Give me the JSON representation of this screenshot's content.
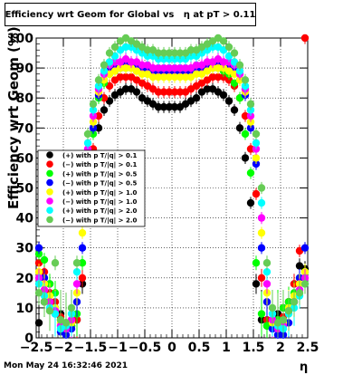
{
  "chart_data": {
    "type": "scatter",
    "title": "Efficiency wrt Geom for Global vs   η at pT > 0.11",
    "xlabel": "η",
    "ylabel": "Efficiency wrt Geom (%)",
    "xlim": [
      -2.5,
      2.5
    ],
    "ylim": [
      0,
      100
    ],
    "x_ticks": [
      "−2.5",
      "−2",
      "−1.5",
      "−1",
      "−0.5",
      "0",
      "0.5",
      "1",
      "1.5",
      "2",
      "2.5"
    ],
    "y_ticks": [
      "0",
      "10",
      "20",
      "30",
      "40",
      "50",
      "60",
      "70",
      "80",
      "90",
      "100"
    ],
    "grid": true,
    "legend_position": "left-middle",
    "footer": "Mon May 24 16:32:46 2021",
    "series": [
      {
        "name": "(+) with p T/|q| > 0.1",
        "color": "#000000",
        "x": [
          -2.45,
          -2.35,
          -2.25,
          -2.15,
          -2.05,
          -1.95,
          -1.85,
          -1.75,
          -1.65,
          -1.55,
          -1.45,
          -1.35,
          -1.25,
          -1.15,
          -1.05,
          -0.95,
          -0.85,
          -0.75,
          -0.65,
          -0.55,
          -0.45,
          -0.35,
          -0.25,
          -0.15,
          -0.05,
          0.05,
          0.15,
          0.25,
          0.35,
          0.45,
          0.55,
          0.65,
          0.75,
          0.85,
          0.95,
          1.05,
          1.15,
          1.25,
          1.35,
          1.45,
          1.55,
          1.65,
          1.75,
          1.85,
          1.95,
          2.05,
          2.15,
          2.25,
          2.35,
          2.45
        ],
        "y": [
          5,
          12,
          18,
          10,
          8,
          5,
          4,
          6,
          18,
          45,
          60,
          70,
          76,
          79,
          81,
          82,
          83,
          83,
          82,
          80,
          79,
          78,
          77,
          77,
          77,
          77,
          77,
          78,
          79,
          80,
          82,
          83,
          83,
          82,
          81,
          79,
          76,
          70,
          60,
          45,
          18,
          6,
          4,
          5,
          8,
          10,
          12,
          18,
          24,
          23
        ]
      },
      {
        "name": "(−) with p T/|q| > 0.1",
        "color": "#ff0000",
        "x": [
          -2.45,
          -2.35,
          -2.25,
          -2.15,
          -2.05,
          -1.95,
          -1.85,
          -1.75,
          -1.65,
          -1.55,
          -1.45,
          -1.35,
          -1.25,
          -1.15,
          -1.05,
          -0.95,
          -0.85,
          -0.75,
          -0.65,
          -0.55,
          -0.45,
          -0.35,
          -0.25,
          -0.15,
          -0.05,
          0.05,
          0.15,
          0.25,
          0.35,
          0.45,
          0.55,
          0.65,
          0.75,
          0.85,
          0.95,
          1.05,
          1.15,
          1.25,
          1.35,
          1.45,
          1.55,
          1.65,
          1.75,
          1.85,
          1.95,
          2.05,
          2.15,
          2.25,
          2.35,
          2.45
        ],
        "y": [
          25,
          22,
          15,
          12,
          7,
          5,
          4,
          6,
          20,
          48,
          63,
          74,
          80,
          84,
          86,
          87,
          87,
          87,
          86,
          85,
          84,
          83,
          82,
          82,
          82,
          82,
          82,
          82,
          83,
          84,
          85,
          86,
          87,
          87,
          87,
          86,
          84,
          80,
          74,
          63,
          48,
          20,
          6,
          4,
          5,
          7,
          12,
          18,
          29,
          100
        ]
      },
      {
        "name": "(+) with p T/|q| > 0.5",
        "color": "#00ff00",
        "x": [
          -2.45,
          -2.35,
          -2.25,
          -2.15,
          -2.05,
          -1.95,
          -1.85,
          -1.75,
          -1.65,
          -1.55,
          -1.45,
          -1.35,
          -1.25,
          -1.15,
          -1.05,
          -0.95,
          -0.85,
          -0.75,
          -0.65,
          -0.55,
          -0.45,
          -0.35,
          -0.25,
          -0.15,
          -0.05,
          0.05,
          0.15,
          0.25,
          0.35,
          0.45,
          0.55,
          0.65,
          0.75,
          0.85,
          0.95,
          1.05,
          1.15,
          1.25,
          1.35,
          1.45,
          1.55,
          1.65,
          1.75,
          1.85,
          1.95,
          2.05,
          2.15,
          2.25,
          2.35,
          2.45
        ],
        "y": [
          28,
          26,
          18,
          15,
          6,
          5,
          4,
          8,
          25,
          55,
          68,
          80,
          85,
          88,
          89,
          90,
          90,
          90,
          89,
          89,
          88,
          88,
          88,
          88,
          88,
          88,
          88,
          88,
          88,
          89,
          89,
          90,
          90,
          90,
          89,
          88,
          85,
          80,
          68,
          55,
          25,
          8,
          4,
          5,
          6,
          10,
          12,
          15,
          20,
          22
        ]
      },
      {
        "name": "(−) with p T/|q| > 0.5",
        "color": "#0000ff",
        "x": [
          -2.45,
          -2.35,
          -2.25,
          -2.15,
          -2.05,
          -1.95,
          -1.85,
          -1.75,
          -1.65,
          -1.55,
          -1.45,
          -1.35,
          -1.25,
          -1.15,
          -1.05,
          -0.95,
          -0.85,
          -0.75,
          -0.65,
          -0.55,
          -0.45,
          -0.35,
          -0.25,
          -0.15,
          -0.05,
          0.05,
          0.15,
          0.25,
          0.35,
          0.45,
          0.55,
          0.65,
          0.75,
          0.85,
          0.95,
          1.05,
          1.15,
          1.25,
          1.35,
          1.45,
          1.55,
          1.65,
          1.75,
          1.85,
          1.95,
          2.05,
          2.15,
          2.25,
          2.35,
          2.45
        ],
        "y": [
          30,
          20,
          12,
          8,
          2,
          1,
          3,
          12,
          30,
          58,
          70,
          81,
          86,
          89,
          90,
          90,
          91,
          91,
          90,
          90,
          89,
          89,
          88,
          88,
          88,
          88,
          88,
          88,
          89,
          89,
          90,
          90,
          91,
          91,
          90,
          90,
          89,
          86,
          81,
          70,
          58,
          30,
          12,
          3,
          1,
          1,
          5,
          12,
          20,
          30
        ]
      },
      {
        "name": "(+) with p T/|q| > 1.0",
        "color": "#ffff00",
        "x": [
          -2.45,
          -2.35,
          -2.25,
          -2.15,
          -2.05,
          -1.95,
          -1.85,
          -1.75,
          -1.65,
          -1.55,
          -1.45,
          -1.35,
          -1.25,
          -1.15,
          -1.05,
          -0.95,
          -0.85,
          -0.75,
          -0.65,
          -0.55,
          -0.45,
          -0.35,
          -0.25,
          -0.15,
          -0.05,
          0.05,
          0.15,
          0.25,
          0.35,
          0.45,
          0.55,
          0.65,
          0.75,
          0.85,
          0.95,
          1.05,
          1.15,
          1.25,
          1.35,
          1.45,
          1.55,
          1.65,
          1.75,
          1.85,
          1.95,
          2.05,
          2.15,
          2.25,
          2.35,
          2.45
        ],
        "y": [
          22,
          18,
          14,
          10,
          5,
          4,
          5,
          15,
          35,
          60,
          72,
          82,
          86,
          88,
          89,
          90,
          90,
          90,
          89,
          88,
          88,
          87,
          87,
          87,
          87,
          87,
          87,
          87,
          87,
          88,
          88,
          89,
          90,
          90,
          90,
          89,
          88,
          86,
          82,
          72,
          60,
          35,
          15,
          5,
          4,
          5,
          10,
          14,
          18,
          22
        ]
      },
      {
        "name": "(−) with p T/|q| > 1.0",
        "color": "#ff00ff",
        "x": [
          -2.45,
          -2.35,
          -2.25,
          -2.15,
          -2.05,
          -1.95,
          -1.85,
          -1.75,
          -1.65,
          -1.55,
          -1.45,
          -1.35,
          -1.25,
          -1.15,
          -1.05,
          -0.95,
          -0.85,
          -0.75,
          -0.65,
          -0.55,
          -0.45,
          -0.35,
          -0.25,
          -0.15,
          -0.05,
          0.05,
          0.15,
          0.25,
          0.35,
          0.45,
          0.55,
          0.65,
          0.75,
          0.85,
          0.95,
          1.05,
          1.15,
          1.25,
          1.35,
          1.45,
          1.55,
          1.65,
          1.75,
          1.85,
          1.95,
          2.05,
          2.15,
          2.25,
          2.35,
          2.45
        ],
        "y": [
          20,
          16,
          12,
          9,
          4,
          3,
          6,
          18,
          40,
          63,
          74,
          83,
          88,
          91,
          92,
          92,
          93,
          92,
          92,
          91,
          91,
          90,
          90,
          90,
          90,
          90,
          90,
          90,
          90,
          91,
          91,
          92,
          92,
          93,
          92,
          92,
          91,
          88,
          83,
          74,
          63,
          40,
          18,
          6,
          3,
          4,
          9,
          12,
          16,
          20
        ]
      },
      {
        "name": "(+) with p T/|q| > 2.0",
        "color": "#00ffff",
        "x": [
          -2.45,
          -2.35,
          -2.25,
          -2.15,
          -2.05,
          -1.95,
          -1.85,
          -1.75,
          -1.65,
          -1.55,
          -1.45,
          -1.35,
          -1.25,
          -1.15,
          -1.05,
          -0.95,
          -0.85,
          -0.75,
          -0.65,
          -0.55,
          -0.45,
          -0.35,
          -0.25,
          -0.15,
          -0.05,
          0.05,
          0.15,
          0.25,
          0.35,
          0.45,
          0.55,
          0.65,
          0.75,
          0.85,
          0.95,
          1.05,
          1.15,
          1.25,
          1.35,
          1.45,
          1.55,
          1.65,
          1.75,
          1.85,
          1.95,
          2.05,
          2.15,
          2.25,
          2.35,
          2.45
        ],
        "y": [
          18,
          14,
          10,
          8,
          3,
          4,
          8,
          22,
          45,
          65,
          76,
          84,
          89,
          92,
          94,
          96,
          97,
          97,
          96,
          95,
          94,
          94,
          93,
          93,
          93,
          93,
          93,
          93,
          94,
          94,
          95,
          96,
          97,
          97,
          96,
          94,
          92,
          89,
          84,
          76,
          65,
          45,
          22,
          8,
          4,
          3,
          8,
          10,
          14,
          18
        ]
      },
      {
        "name": "(−) with p T/|q| > 2.0",
        "color": "#66cc55",
        "x": [
          -2.45,
          -2.35,
          -2.25,
          -2.15,
          -2.05,
          -1.95,
          -1.85,
          -1.75,
          -1.65,
          -1.55,
          -1.45,
          -1.35,
          -1.25,
          -1.15,
          -1.05,
          -0.95,
          -0.85,
          -0.75,
          -0.65,
          -0.55,
          -0.45,
          -0.35,
          -0.25,
          -0.15,
          -0.05,
          0.05,
          0.15,
          0.25,
          0.35,
          0.45,
          0.55,
          0.65,
          0.75,
          0.85,
          0.95,
          1.05,
          1.15,
          1.25,
          1.35,
          1.45,
          1.55,
          1.65,
          1.75,
          1.85,
          1.95,
          2.05,
          2.15,
          2.25,
          2.35,
          2.45
        ],
        "y": [
          15,
          12,
          9,
          25,
          6,
          5,
          10,
          25,
          50,
          68,
          78,
          86,
          91,
          95,
          97,
          99,
          100,
          99,
          98,
          97,
          96,
          96,
          95,
          95,
          95,
          95,
          95,
          95,
          96,
          96,
          97,
          98,
          99,
          100,
          99,
          97,
          95,
          91,
          86,
          78,
          68,
          50,
          25,
          10,
          5,
          6,
          9,
          12,
          15,
          18
        ]
      }
    ]
  }
}
